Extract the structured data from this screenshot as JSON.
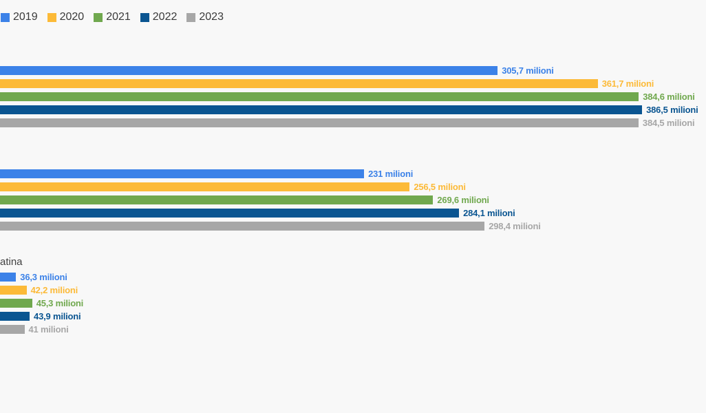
{
  "page": {
    "background_color": "#f8f8f8"
  },
  "chart_data": {
    "type": "bar",
    "orientation": "horizontal",
    "unit": "milioni",
    "legend_position": "top-left",
    "series": [
      {
        "name": "2019",
        "color": "#3c82e8"
      },
      {
        "name": "2020",
        "color": "#fcba38"
      },
      {
        "name": "2021",
        "color": "#70a84e"
      },
      {
        "name": "2022",
        "color": "#0a5591"
      },
      {
        "name": "2023",
        "color": "#a7a7a7"
      }
    ],
    "groups": [
      {
        "category": "",
        "values": [
          305.7,
          361.7,
          384.6,
          386.5,
          384.5
        ],
        "value_labels": [
          "305,7 milioni",
          "361,7 milioni",
          "384,6 milioni",
          "386,5 milioni",
          "384,5 milioni"
        ]
      },
      {
        "category": "",
        "values": [
          231,
          256.5,
          269.6,
          284.1,
          298.4
        ],
        "value_labels": [
          "231 milioni",
          "256,5 milioni",
          "269,6 milioni",
          "284,1 milioni",
          "298,4 milioni"
        ]
      },
      {
        "category": "atina",
        "values": [
          36.3,
          42.2,
          45.3,
          43.9,
          41
        ],
        "value_labels": [
          "36,3 milioni",
          "42,2 milioni",
          "45,3 milioni",
          "43,9 milioni",
          "41 milioni"
        ]
      }
    ]
  }
}
